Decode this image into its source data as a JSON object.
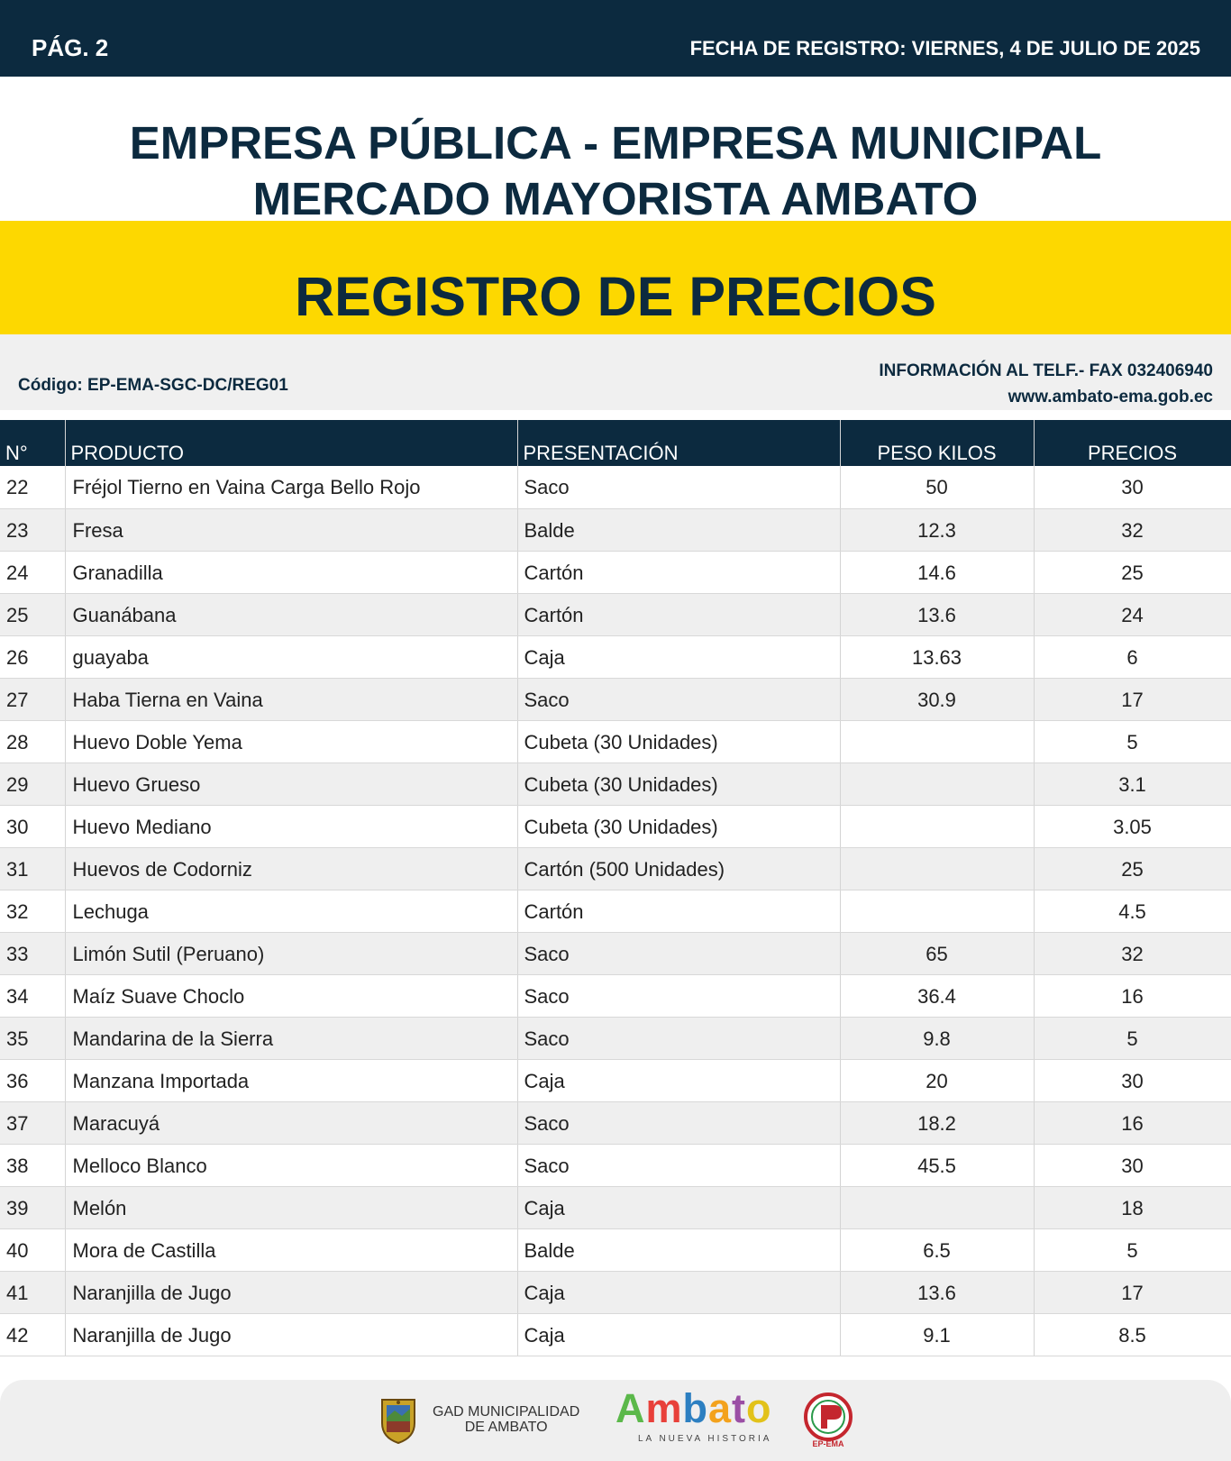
{
  "header": {
    "page_label": "PÁG. 2",
    "registration_date": "FECHA DE REGISTRO: VIERNES, 4 DE JULIO DE 2025"
  },
  "org": {
    "line1": "EMPRESA PÚBLICA - EMPRESA MUNICIPAL",
    "line2": "MERCADO MAYORISTA AMBATO"
  },
  "title": "REGISTRO DE PRECIOS",
  "info": {
    "code": "Código: EP-EMA-SGC-DC/REG01",
    "phone": "INFORMACIÓN AL TELF.- FAX 032406940",
    "website": "www.ambato-ema.gob.ec"
  },
  "table": {
    "headers": {
      "num": "N°",
      "product": "PRODUCTO",
      "presentation": "PRESENTACIÓN",
      "weight": "PESO KILOS",
      "price": "PRECIOS"
    },
    "rows": [
      {
        "num": "22",
        "product": "Fréjol Tierno en Vaina Carga Bello Rojo",
        "presentation": "Saco",
        "weight": "50",
        "price": "30"
      },
      {
        "num": "23",
        "product": "Fresa",
        "presentation": "Balde",
        "weight": "12.3",
        "price": "32"
      },
      {
        "num": "24",
        "product": "Granadilla",
        "presentation": "Cartón",
        "weight": "14.6",
        "price": "25"
      },
      {
        "num": "25",
        "product": "Guanábana",
        "presentation": "Cartón",
        "weight": "13.6",
        "price": "24"
      },
      {
        "num": "26",
        "product": "guayaba",
        "presentation": "Caja",
        "weight": "13.63",
        "price": "6"
      },
      {
        "num": "27",
        "product": "Haba Tierna en Vaina",
        "presentation": "Saco",
        "weight": "30.9",
        "price": "17"
      },
      {
        "num": "28",
        "product": "Huevo Doble Yema",
        "presentation": "Cubeta (30 Unidades)",
        "weight": "",
        "price": "5"
      },
      {
        "num": "29",
        "product": "Huevo Grueso",
        "presentation": "Cubeta (30 Unidades)",
        "weight": "",
        "price": "3.1"
      },
      {
        "num": "30",
        "product": "Huevo Mediano",
        "presentation": "Cubeta (30 Unidades)",
        "weight": "",
        "price": "3.05"
      },
      {
        "num": "31",
        "product": "Huevos de Codorniz",
        "presentation": "Cartón (500 Unidades)",
        "weight": "",
        "price": "25"
      },
      {
        "num": "32",
        "product": "Lechuga",
        "presentation": "Cartón",
        "weight": "",
        "price": "4.5"
      },
      {
        "num": "33",
        "product": "Limón Sutil (Peruano)",
        "presentation": "Saco",
        "weight": "65",
        "price": "32"
      },
      {
        "num": "34",
        "product": "Maíz Suave Choclo",
        "presentation": "Saco",
        "weight": "36.4",
        "price": "16"
      },
      {
        "num": "35",
        "product": "Mandarina de la Sierra",
        "presentation": "Saco",
        "weight": "9.8",
        "price": "5"
      },
      {
        "num": "36",
        "product": "Manzana Importada",
        "presentation": "Caja",
        "weight": "20",
        "price": "30"
      },
      {
        "num": "37",
        "product": "Maracuyá",
        "presentation": "Saco",
        "weight": "18.2",
        "price": "16"
      },
      {
        "num": "38",
        "product": "Melloco Blanco",
        "presentation": "Saco",
        "weight": "45.5",
        "price": "30"
      },
      {
        "num": "39",
        "product": "Melón",
        "presentation": "Caja",
        "weight": "",
        "price": "18"
      },
      {
        "num": "40",
        "product": "Mora de Castilla",
        "presentation": "Balde",
        "weight": "6.5",
        "price": "5"
      },
      {
        "num": "41",
        "product": "Naranjilla de Jugo",
        "presentation": "Caja",
        "weight": "13.6",
        "price": "17"
      },
      {
        "num": "42",
        "product": "Naranjilla de Jugo",
        "presentation": "Caja",
        "weight": "9.1",
        "price": "8.5"
      }
    ]
  },
  "footer": {
    "gad_line1": "GAD MUNICIPALIDAD",
    "gad_line2": "DE AMBATO",
    "ambato_logo_text": "Ambato",
    "ambato_tagline": "LA NUEVA HISTORIA",
    "ep_logo_text": "EP-EMA"
  },
  "colors": {
    "navy": "#0c2a3f",
    "yellow": "#fdd800",
    "row_alt": "#efefef"
  }
}
